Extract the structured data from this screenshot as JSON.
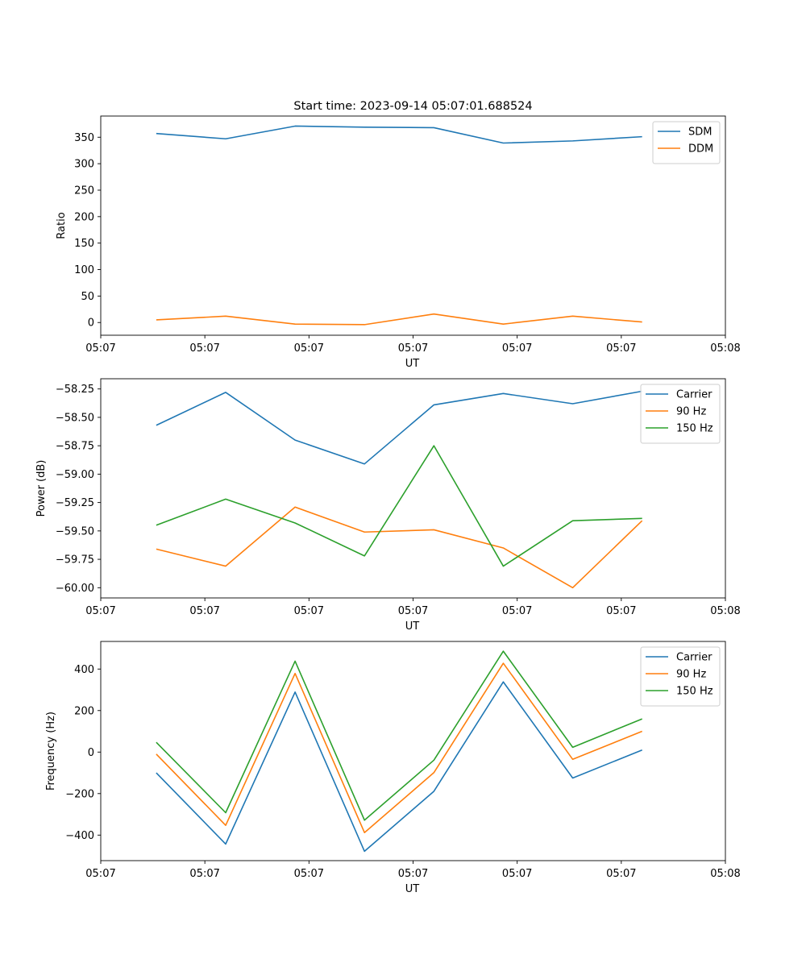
{
  "figure": {
    "title": "Start time: 2023-09-14 05:07:01.688524"
  },
  "chart_data": [
    {
      "type": "line",
      "xlabel": "UT",
      "ylabel": "Ratio",
      "x": [
        1,
        2,
        3,
        4,
        5,
        6,
        7,
        8
      ],
      "xlim": [
        0.2,
        9.2
      ],
      "xticks": [
        0.2,
        1.7,
        3.2,
        4.7,
        6.2,
        7.7,
        9.2
      ],
      "xtick_labels": [
        "05:07",
        "05:07",
        "05:07",
        "05:07",
        "05:07",
        "05:07",
        "05:08"
      ],
      "ylim": [
        -24,
        390
      ],
      "yticks": [
        0,
        50,
        100,
        150,
        200,
        250,
        300,
        350
      ],
      "ytick_labels": [
        "0",
        "50",
        "100",
        "150",
        "200",
        "250",
        "300",
        "350"
      ],
      "legend_position": "top-right",
      "series": [
        {
          "name": "SDM",
          "color": "#1f77b4",
          "values": [
            357,
            347,
            371,
            369,
            368,
            339,
            343,
            351
          ]
        },
        {
          "name": "DDM",
          "color": "#ff7f0e",
          "values": [
            5,
            12,
            -3,
            -4,
            16,
            -3,
            12,
            1
          ]
        }
      ]
    },
    {
      "type": "line",
      "xlabel": "UT",
      "ylabel": "Power (dB)",
      "x": [
        1,
        2,
        3,
        4,
        5,
        6,
        7,
        8
      ],
      "xlim": [
        0.2,
        9.2
      ],
      "xticks": [
        0.2,
        1.7,
        3.2,
        4.7,
        6.2,
        7.7,
        9.2
      ],
      "xtick_labels": [
        "05:07",
        "05:07",
        "05:07",
        "05:07",
        "05:07",
        "05:07",
        "05:08"
      ],
      "ylim": [
        -60.09,
        -58.16
      ],
      "yticks": [
        -60.0,
        -59.75,
        -59.5,
        -59.25,
        -59.0,
        -58.75,
        -58.5,
        -58.25
      ],
      "ytick_labels": [
        "−60.00",
        "−59.75",
        "−59.50",
        "−59.25",
        "−59.00",
        "−58.75",
        "−58.50",
        "−58.25"
      ],
      "legend_position": "top-right",
      "series": [
        {
          "name": "Carrier",
          "color": "#1f77b4",
          "values": [
            -58.57,
            -58.28,
            -58.7,
            -58.91,
            -58.39,
            -58.29,
            -58.38,
            -58.27
          ]
        },
        {
          "name": "90 Hz",
          "color": "#ff7f0e",
          "values": [
            -59.66,
            -59.81,
            -59.29,
            -59.51,
            -59.49,
            -59.65,
            -60.0,
            -59.41
          ]
        },
        {
          "name": "150 Hz",
          "color": "#2ca02c",
          "values": [
            -59.45,
            -59.22,
            -59.43,
            -59.72,
            -58.75,
            -59.81,
            -59.41,
            -59.39
          ]
        }
      ]
    },
    {
      "type": "line",
      "xlabel": "UT",
      "ylabel": "Frequency (Hz)",
      "x": [
        1,
        2,
        3,
        4,
        5,
        6,
        7,
        8
      ],
      "xlim": [
        0.2,
        9.2
      ],
      "xticks": [
        0.2,
        1.7,
        3.2,
        4.7,
        6.2,
        7.7,
        9.2
      ],
      "xtick_labels": [
        "05:07",
        "05:07",
        "05:07",
        "05:07",
        "05:07",
        "05:07",
        "05:08"
      ],
      "ylim": [
        -523,
        533
      ],
      "yticks": [
        -400,
        -200,
        0,
        200,
        400
      ],
      "ytick_labels": [
        "−400",
        "−200",
        "0",
        "200",
        "400"
      ],
      "legend_position": "top-right",
      "series": [
        {
          "name": "Carrier",
          "color": "#1f77b4",
          "values": [
            -100,
            -443,
            289,
            -478,
            -189,
            338,
            -125,
            10
          ]
        },
        {
          "name": "90 Hz",
          "color": "#ff7f0e",
          "values": [
            -10,
            -353,
            379,
            -388,
            -99,
            428,
            -35,
            100
          ]
        },
        {
          "name": "150 Hz",
          "color": "#2ca02c",
          "values": [
            47,
            -292,
            438,
            -328,
            -39,
            486,
            23,
            160
          ]
        }
      ]
    }
  ]
}
